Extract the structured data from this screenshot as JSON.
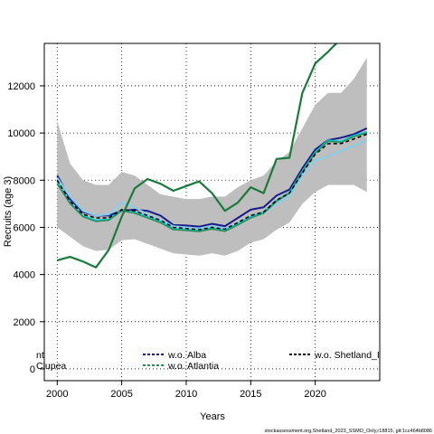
{
  "chart_data": {
    "type": "line",
    "xlabel": "Years",
    "ylabel": "Recruits (age 3)",
    "xlim": [
      1999,
      2025
    ],
    "ylim": [
      -500,
      13800
    ],
    "x_ticks": [
      "2000",
      "2005",
      "2010",
      "2015",
      "2020"
    ],
    "y_ticks": [
      "0",
      "2000",
      "4000",
      "6000",
      "8000",
      "10000",
      "12000"
    ],
    "grid": true,
    "x": [
      2000,
      2001,
      2002,
      2003,
      2004,
      2005,
      2006,
      2007,
      2008,
      2009,
      2010,
      2011,
      2012,
      2013,
      2014,
      2015,
      2016,
      2017,
      2018,
      2019,
      2020,
      2021,
      2022,
      2023,
      2024
    ],
    "band": {
      "color": "#bebebe",
      "upper": [
        10500,
        8700,
        8000,
        7800,
        7800,
        8350,
        8200,
        7800,
        7400,
        7300,
        7200,
        7200,
        7300,
        7300,
        7700,
        8000,
        8200,
        8800,
        9200,
        10200,
        11200,
        11700,
        11700,
        12300,
        13200
      ],
      "lower": [
        6000,
        5600,
        5200,
        5000,
        5050,
        5450,
        5500,
        5300,
        5100,
        4900,
        4850,
        4800,
        4900,
        4800,
        5000,
        5350,
        5500,
        5900,
        6200,
        7000,
        7500,
        7800,
        7800,
        7800,
        7500
      ]
    },
    "series": [
      {
        "name": "",
        "color": "#1a1a8c",
        "dash": "solid",
        "width": 2,
        "values": [
          8200,
          7200,
          6650,
          6500,
          6500,
          6700,
          6750,
          6700,
          6500,
          6100,
          6080,
          6030,
          6150,
          6050,
          6400,
          6750,
          6850,
          7350,
          7600,
          8500,
          9300,
          9700,
          9800,
          9950,
          10200
        ]
      },
      {
        "name": "w.o. Alba",
        "color": "#87ceeb",
        "dash": "solid",
        "width": 2,
        "values": [
          8100,
          7300,
          6700,
          6500,
          6550,
          7050,
          6850,
          6550,
          6300,
          6050,
          6000,
          5950,
          6050,
          5950,
          6150,
          6400,
          6600,
          7000,
          7300,
          8200,
          8850,
          9000,
          9250,
          9450,
          9700
        ]
      },
      {
        "name": "",
        "color": "#00cdcd",
        "dash": "solid",
        "width": 1.5,
        "values": [
          7950,
          7050,
          6500,
          6300,
          6350,
          6750,
          6650,
          6450,
          6250,
          5950,
          5920,
          5870,
          5980,
          5880,
          6150,
          6450,
          6650,
          7150,
          7500,
          8400,
          9200,
          9700,
          9650,
          9900,
          10050
        ]
      },
      {
        "name": "w.o. Atlantia",
        "color": "#2e8b57",
        "dash": "solid",
        "width": 1.5,
        "values": [
          7850,
          7000,
          6450,
          6250,
          6300,
          6700,
          6600,
          6400,
          6200,
          5900,
          5870,
          5820,
          5930,
          5830,
          6100,
          6400,
          6600,
          7100,
          7450,
          8350,
          9150,
          9650,
          9600,
          9850,
          10000
        ]
      },
      {
        "name": "w.o. Shetland_I",
        "color": "#000000",
        "dash": "dashed",
        "width": 1.5,
        "values": [
          8000,
          7100,
          6550,
          6400,
          6400,
          6750,
          6700,
          6500,
          6300,
          6000,
          5950,
          5900,
          6000,
          5920,
          6200,
          6500,
          6650,
          7150,
          7450,
          8300,
          9100,
          9550,
          9550,
          9750,
          9950
        ]
      },
      {
        "name": "",
        "color": "#1a7a3c",
        "dash": "solid",
        "width": 2.2,
        "values": [
          4600,
          4750,
          4550,
          4300,
          5050,
          6450,
          7650,
          8050,
          7850,
          7550,
          7750,
          7950,
          7450,
          6700,
          7050,
          7700,
          7450,
          8900,
          8950,
          11700,
          12950,
          13450,
          14000,
          14300,
          14500
        ]
      }
    ],
    "legend": {
      "placement": "bottom",
      "entries": [
        {
          "label": "nt",
          "color": "#1a1a8c",
          "dash": "solid"
        },
        {
          "label": "Clupea",
          "color": "#1a7a3c",
          "dash": "solid"
        },
        {
          "label": "w.o. Alba",
          "color": "#1a1a8c",
          "dash": "dashed"
        },
        {
          "label": "w.o. Atlantia",
          "color": "#2e8b57",
          "dash": "dashed"
        },
        {
          "label": "w.o. Shetland_I",
          "color": "#000000",
          "dash": "dashed"
        }
      ]
    },
    "footer": "stockassessment.org,Shetland_2023_SSMO_Only,r18815, git:1cc464b8086"
  }
}
